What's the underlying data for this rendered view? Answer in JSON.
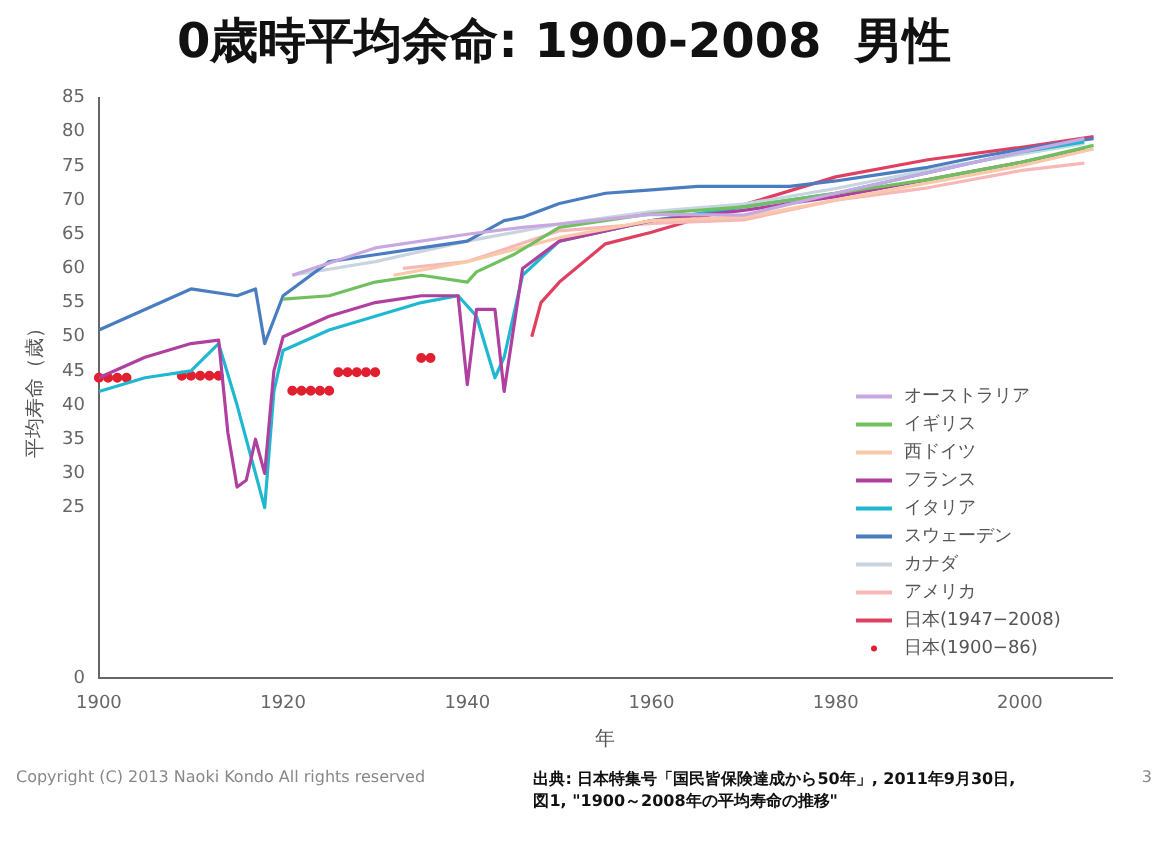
{
  "chart_data": {
    "type": "line",
    "title": "0歳時平均余命: 1900-2008  男性",
    "xlabel": "年",
    "ylabel": "平均寿命（歳）",
    "xlim": [
      1900,
      2010
    ],
    "xticks": [
      1900,
      1920,
      1940,
      1960,
      1980,
      2000
    ],
    "ylim": [
      0,
      85
    ],
    "yticks": [
      0,
      25,
      30,
      35,
      40,
      45,
      50,
      55,
      60,
      65,
      70,
      75,
      80,
      85
    ],
    "grid": false,
    "legend": "bottom right",
    "marker": "none",
    "line_style": "solid",
    "series": [
      {
        "name": "オーストラリア",
        "color": "#c8a8e0",
        "x": [
          1921,
          1930,
          1940,
          1946,
          1950,
          1960,
          1970,
          1980,
          1990,
          2000,
          2007
        ],
        "values": [
          59,
          63,
          65,
          66,
          66.5,
          67.9,
          67.8,
          71,
          74,
          77,
          79
        ]
      },
      {
        "name": "イギリス",
        "color": "#70c060",
        "x": [
          1920,
          1925,
          1930,
          1935,
          1940,
          1941,
          1945,
          1950,
          1960,
          1970,
          1980,
          1990,
          2000,
          2008
        ],
        "values": [
          55.5,
          56,
          58,
          59,
          58,
          59.5,
          62,
          66,
          68,
          69,
          71,
          73,
          75.5,
          78
        ]
      },
      {
        "name": "西ドイツ",
        "color": "#f8c8a8",
        "x": [
          1932,
          1940,
          1950,
          1960,
          1970,
          1980,
          1990,
          2000,
          2008
        ],
        "values": [
          59,
          61,
          64.5,
          67,
          67.5,
          70,
          72.5,
          75,
          77.5
        ]
      },
      {
        "name": "フランス",
        "color": "#b040a0",
        "x": [
          1900,
          1905,
          1910,
          1913,
          1914,
          1915,
          1916,
          1917,
          1918,
          1919,
          1920,
          1925,
          1930,
          1935,
          1939,
          1940,
          1941,
          1943,
          1944,
          1946,
          1950,
          1960,
          1970,
          1980,
          1990,
          2000,
          2007
        ],
        "values": [
          44,
          47,
          49,
          49.5,
          36,
          28,
          29,
          35,
          30,
          45,
          50,
          53,
          55,
          56,
          56,
          43,
          54,
          54,
          42,
          60,
          64,
          67,
          68.5,
          70.5,
          73,
          75.5,
          77.5
        ]
      },
      {
        "name": "イタリア",
        "color": "#20b8d0",
        "x": [
          1900,
          1905,
          1910,
          1913,
          1915,
          1917,
          1918,
          1919,
          1920,
          1925,
          1930,
          1935,
          1939,
          1941,
          1943,
          1944,
          1946,
          1950,
          1960,
          1970,
          1980,
          1990,
          2000,
          2007
        ],
        "values": [
          42,
          44,
          45,
          49,
          40,
          30,
          25,
          42,
          48,
          51,
          53,
          55,
          56,
          53,
          44,
          47,
          59,
          64,
          67,
          69,
          71,
          74,
          77,
          78.5
        ]
      },
      {
        "name": "スウェーデン",
        "color": "#4a7cc0",
        "x": [
          1900,
          1905,
          1910,
          1915,
          1917,
          1918,
          1920,
          1925,
          1930,
          1935,
          1940,
          1944,
          1946,
          1950,
          1955,
          1960,
          1965,
          1970,
          1975,
          1980,
          1985,
          1990,
          1995,
          2000,
          2005,
          2008
        ],
        "values": [
          51,
          54,
          57,
          56,
          57,
          49,
          56,
          61,
          62,
          63,
          64,
          67,
          67.5,
          69.5,
          71,
          71.5,
          72,
          72,
          72,
          72.8,
          73.8,
          74.8,
          76.2,
          77.4,
          78.5,
          79
        ]
      },
      {
        "name": "カナダ",
        "color": "#c8d4e0",
        "x": [
          1921,
          1930,
          1940,
          1950,
          1960,
          1970,
          1980,
          1990,
          2000,
          2007
        ],
        "values": [
          59,
          61,
          64,
          66.5,
          68.3,
          69.4,
          71.7,
          74.4,
          76.7,
          78.3
        ]
      },
      {
        "name": "アメリカ",
        "color": "#f8b8b8",
        "x": [
          1933,
          1940,
          1950,
          1960,
          1970,
          1980,
          1990,
          2000,
          2007
        ],
        "values": [
          60,
          61,
          65.5,
          66.6,
          67.1,
          70,
          71.8,
          74.3,
          75.4
        ]
      },
      {
        "name": "日本(1947−2008)",
        "color": "#e04060",
        "x": [
          1947,
          1948,
          1950,
          1955,
          1960,
          1970,
          1980,
          1990,
          2000,
          2008
        ],
        "values": [
          50,
          55,
          58,
          63.6,
          65.3,
          69.3,
          73.4,
          75.9,
          77.7,
          79.3
        ]
      },
      {
        "name": "日本(1900−86)",
        "color": "#e02030",
        "type": "scatter",
        "marker": "circle",
        "x": [
          1900,
          1901,
          1902,
          1903,
          1909,
          1910,
          1911,
          1912,
          1913,
          1921,
          1922,
          1923,
          1924,
          1925,
          1926,
          1927,
          1928,
          1929,
          1930,
          1935,
          1936
        ],
        "values": [
          44,
          44,
          44,
          44,
          44.3,
          44.3,
          44.3,
          44.3,
          44.3,
          42.1,
          42.1,
          42.1,
          42.1,
          42.1,
          44.8,
          44.8,
          44.8,
          44.8,
          44.8,
          46.9,
          46.9
        ]
      }
    ],
    "annotations": [
      "Copyright (C) 2013 Naoki Kondo All rights reserved",
      "出典: 日本特集号「国民皆保険達成から50年」, 2011年9月30日, 図1, \"1900～2008年の平均寿命の推移\"",
      "3"
    ]
  }
}
